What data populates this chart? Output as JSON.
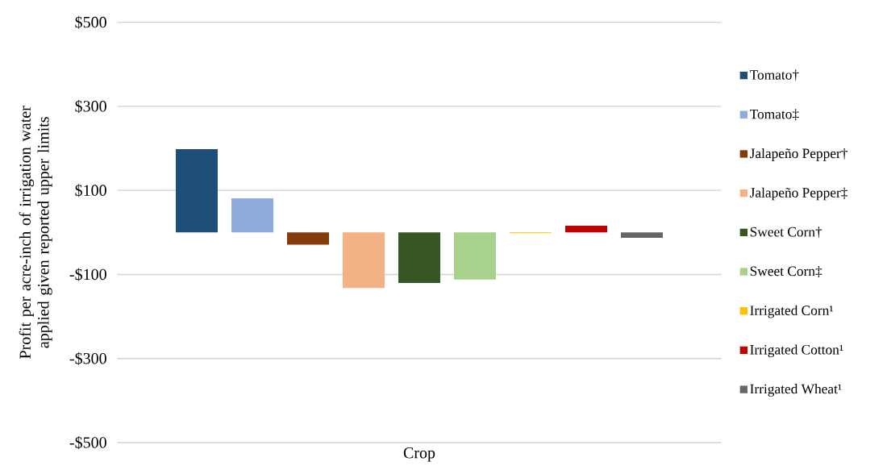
{
  "chart_data": {
    "type": "bar",
    "xlabel": "Crop",
    "ylabel": "Profit per acre-inch of irrigation water applied given reported upper limits",
    "categories": [
      null
    ],
    "series": [
      {
        "name": "Tomato†",
        "color": "#1f4e79",
        "values": [
          198
        ]
      },
      {
        "name": "Tomato‡",
        "color": "#8faadc",
        "values": [
          81
        ]
      },
      {
        "name": "Jalapeño Pepper†",
        "color": "#843c0c",
        "values": [
          -29
        ]
      },
      {
        "name": "Jalapeño Pepper‡",
        "color": "#f4b183",
        "values": [
          -132
        ]
      },
      {
        "name": "Sweet Corn†",
        "color": "#375623",
        "values": [
          -120
        ]
      },
      {
        "name": "Sweet Corn‡",
        "color": "#a9d18e",
        "values": [
          -112
        ]
      },
      {
        "name": "Irrigated Corn¹",
        "color": "#ffc000",
        "values": [
          -2
        ]
      },
      {
        "name": "Irrigated Cotton¹",
        "color": "#c00000",
        "values": [
          16
        ]
      },
      {
        "name": "Irrigated Wheat¹",
        "color": "#666666",
        "values": [
          -13
        ]
      }
    ],
    "ylim": [
      -500,
      500
    ],
    "yticks": [
      {
        "value": -500,
        "label": "-$500"
      },
      {
        "value": -300,
        "label": "-$300"
      },
      {
        "value": -100,
        "label": "-$100"
      },
      {
        "value": 100,
        "label": "$100"
      },
      {
        "value": 300,
        "label": "$300"
      },
      {
        "value": 500,
        "label": "$500"
      }
    ],
    "grid": "y",
    "legend": "right"
  }
}
